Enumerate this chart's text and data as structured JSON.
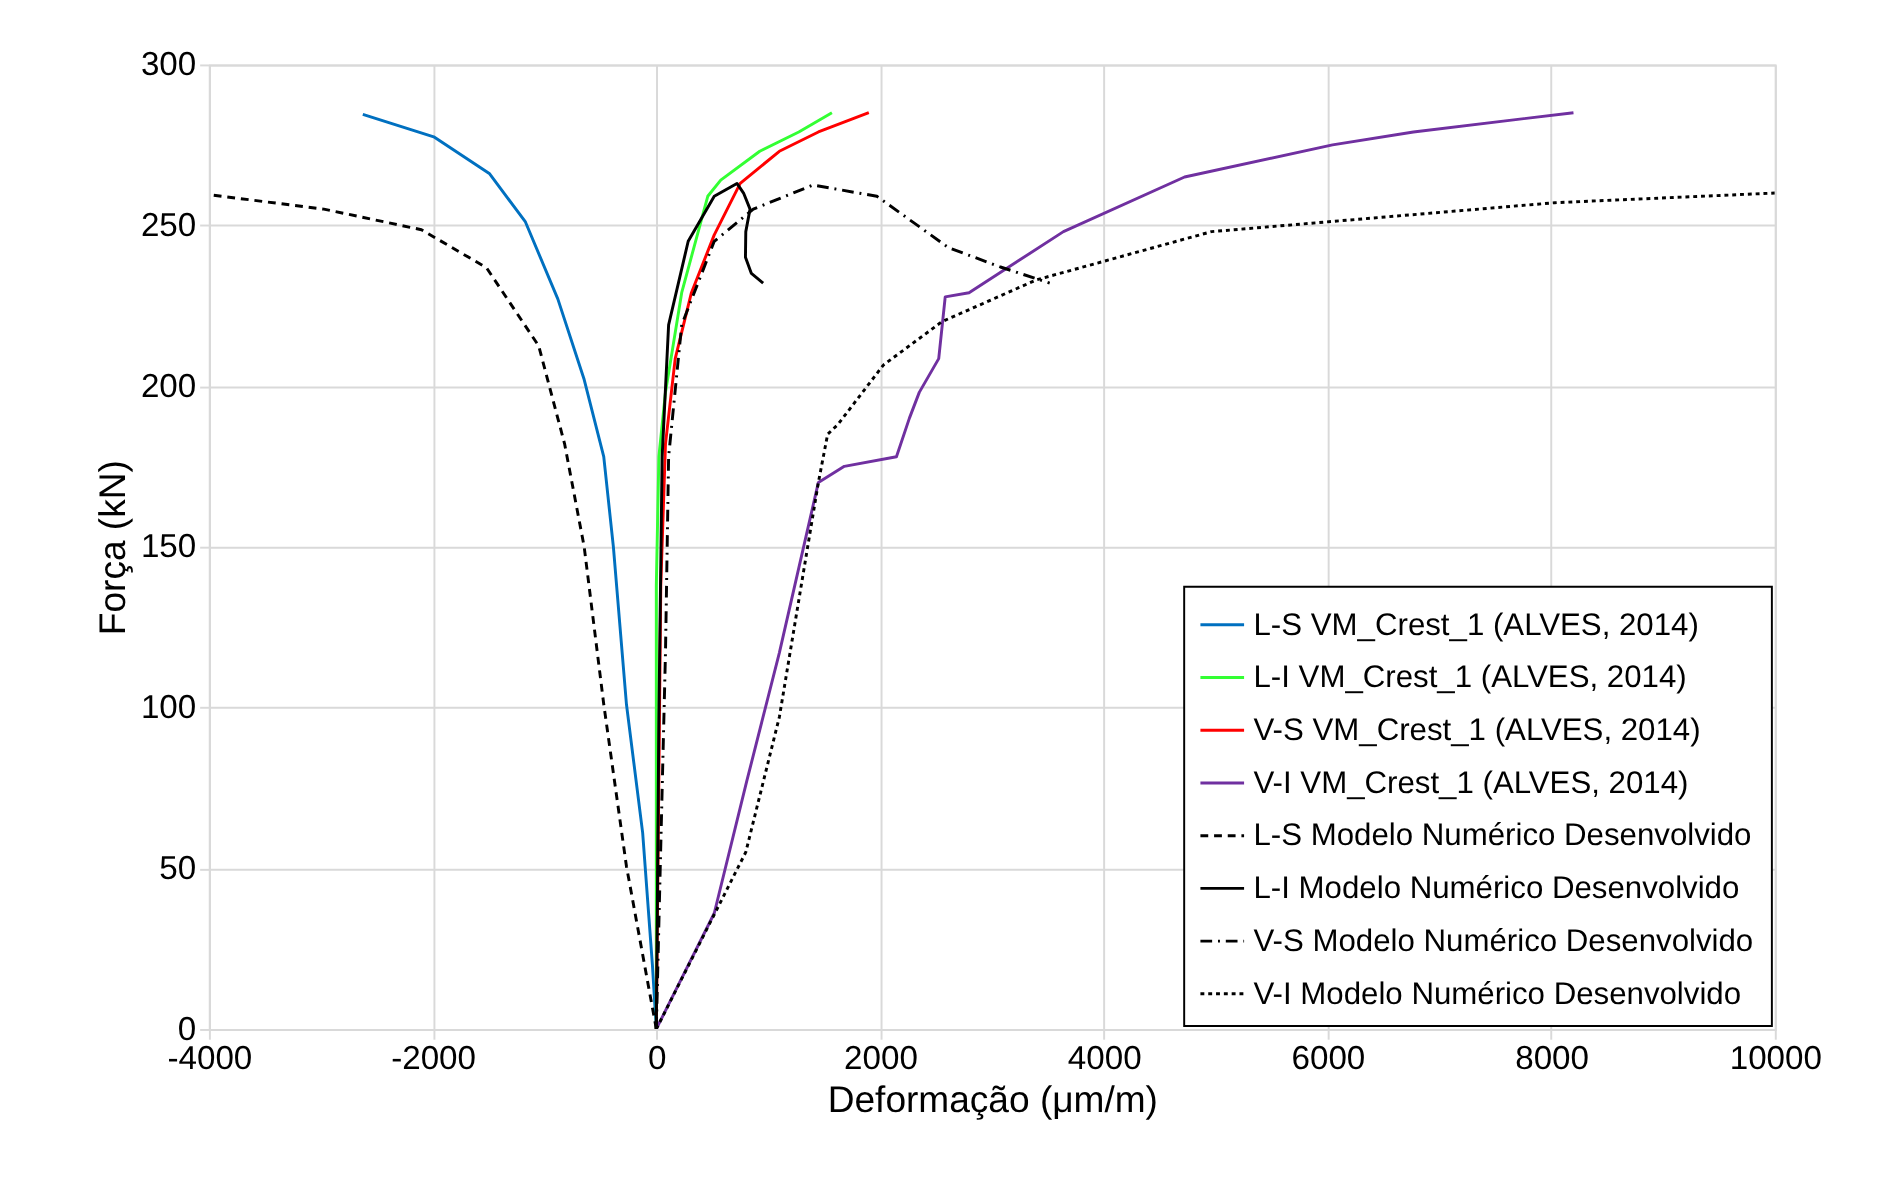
{
  "chart_data": {
    "type": "line",
    "xlabel": "Deformação (μm/m)",
    "ylabel": "Força (kN)",
    "xlim": [
      -4000,
      10000
    ],
    "xticks": [
      -4000,
      -2000,
      0,
      2000,
      4000,
      6000,
      8000,
      10000
    ],
    "ylim": [
      0,
      300
    ],
    "yticks": [
      0,
      50,
      100,
      150,
      200,
      250,
      300
    ],
    "grid": true,
    "legend": "bottom right",
    "marker": "none",
    "series": [
      {
        "name": "L-S VM_Crest_1 (ALVES, 2014)",
        "color": "#0070c0",
        "line_style": "solid",
        "x": [
          0,
          -35,
          -122,
          -267,
          -384,
          -470,
          -645,
          -880,
          -1170,
          -1490,
          -1990,
          -2624
        ],
        "values": [
          0,
          20,
          61,
          101,
          150,
          178,
          202,
          227,
          251,
          266,
          277.5,
          284.5
        ]
      },
      {
        "name": "L-I VM_Crest_1 (ALVES, 2014)",
        "color": "#33ff33",
        "line_style": "solid",
        "x": [
          0,
          0,
          23,
          82,
          227,
          460,
          576,
          925,
          1274,
          1570
        ],
        "values": [
          0,
          138,
          178,
          198,
          229,
          259,
          264,
          273,
          279,
          285
        ]
      },
      {
        "name": "V-S VM_Crest_1 (ALVES, 2014)",
        "color": "#ff0000",
        "line_style": "solid",
        "x": [
          0,
          40,
          82,
          169,
          314,
          518,
          750,
          1100,
          1449,
          1900
        ],
        "values": [
          0,
          138,
          182,
          208.5,
          229,
          247,
          263,
          273,
          279,
          285
        ]
      },
      {
        "name": "V-I VM_Crest_1 (ALVES, 2014)",
        "color": "#7030a0",
        "line_style": "solid",
        "x": [
          0,
          518,
          808,
          1100,
          1449,
          1681,
          2147,
          2263,
          2351,
          2525,
          2583,
          2796,
          3640,
          4723,
          6046,
          6769,
          8200
        ],
        "values": [
          0,
          36,
          77,
          117,
          170,
          175,
          178,
          190,
          198,
          208.5,
          227.7,
          229,
          248,
          265,
          275,
          279,
          285
        ]
      },
      {
        "name": "L-S Modelo Numérico Desenvolvido",
        "color": "#000000",
        "line_style": "dashed",
        "x": [
          0,
          -267,
          -470,
          -645,
          -820,
          -1052,
          -1519,
          -2100,
          -2973,
          -4000
        ],
        "values": [
          0,
          50.6,
          101,
          150,
          182,
          212.5,
          236.8,
          248.6,
          255,
          259.5
        ]
      },
      {
        "name": "L-I Modelo Numérico Desenvolvido",
        "color": "#000000",
        "line_style": "solid",
        "x": [
          0,
          23,
          52,
          110,
          285,
          518,
          721,
          780,
          838,
          800,
          797,
          850,
          955
        ],
        "values": [
          0,
          97,
          178,
          219,
          245,
          259,
          263,
          260,
          255,
          248,
          240,
          235,
          232
        ]
      },
      {
        "name": "V-S Modelo Numérico Desenvolvido",
        "color": "#000000",
        "line_style": "dashdot",
        "x": [
          0,
          82,
          110,
          227,
          518,
          867,
          1400,
          1972,
          2613,
          3077,
          3517
        ],
        "values": [
          0,
          117,
          178,
          219,
          245,
          255,
          262.5,
          259,
          243,
          237,
          232
        ]
      },
      {
        "name": "V-I Modelo Numérico Desenvolvido",
        "color": "#000000",
        "line_style": "dotted",
        "x": [
          0,
          800,
          1100,
          1449,
          1532,
          1623,
          2030,
          2554,
          3398,
          4964,
          8033,
          10000
        ],
        "values": [
          0,
          55,
          97,
          170,
          185,
          188,
          206.5,
          220,
          233,
          248,
          257,
          260
        ]
      }
    ]
  }
}
